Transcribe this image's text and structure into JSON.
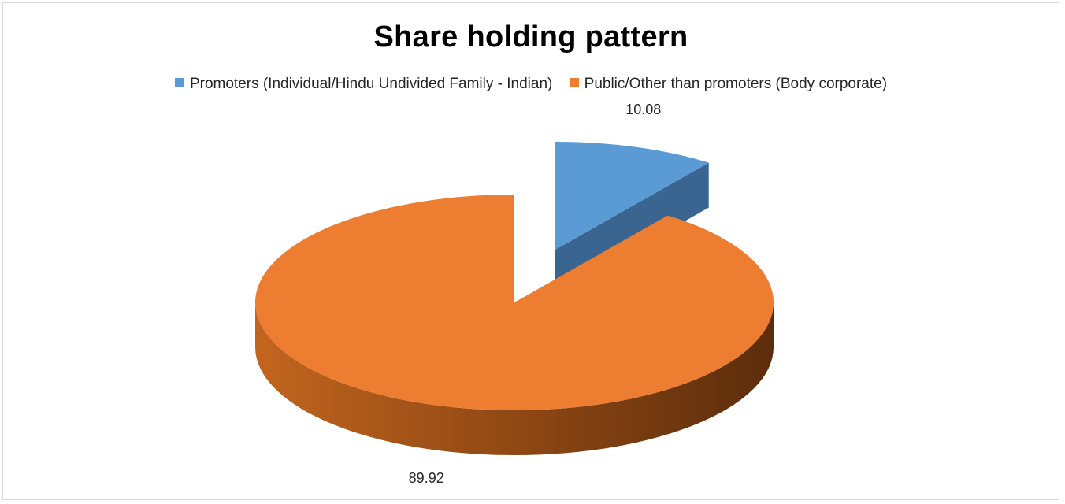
{
  "chart_data": {
    "type": "pie",
    "style": "3d exploded",
    "title": "Share holding pattern",
    "legend_position": "top",
    "series": [
      {
        "categories": [
          "Promoters (Individual/Hindu Undivided Family - Indian)",
          "Public/Other than promoters (Body corporate)"
        ],
        "values": [
          10.08,
          89.92
        ],
        "labels": [
          "10.08",
          "89.92"
        ]
      }
    ],
    "colors": [
      "#5b9bd5",
      "#ed7d31"
    ],
    "side_colors": [
      "#3a6591",
      "#7a3d12"
    ]
  }
}
